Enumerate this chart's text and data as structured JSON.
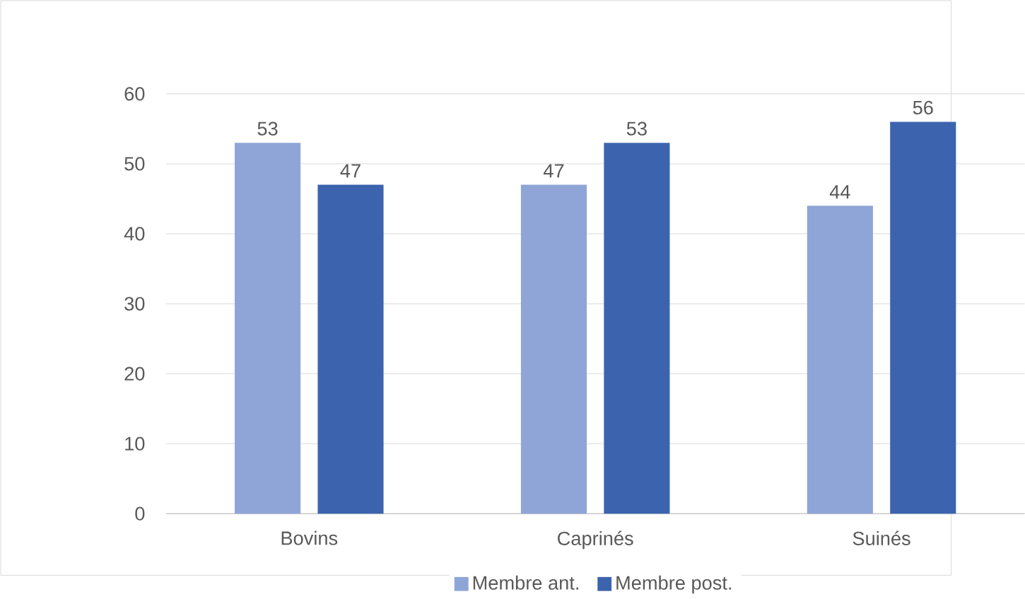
{
  "chart_data": {
    "type": "bar",
    "categories": [
      "Bovins",
      "Caprinés",
      "Suinés"
    ],
    "series": [
      {
        "name": "Membre ant.",
        "color": "#8fa5d7",
        "values": [
          53,
          47,
          44
        ]
      },
      {
        "name": "Membre post.",
        "color": "#3c64ae",
        "values": [
          47,
          53,
          56
        ]
      }
    ],
    "ylim": [
      0,
      60
    ],
    "yticks": [
      0,
      10,
      20,
      30,
      40,
      50,
      60
    ],
    "grid": "y",
    "legend": "bottom",
    "data_labels": true
  }
}
